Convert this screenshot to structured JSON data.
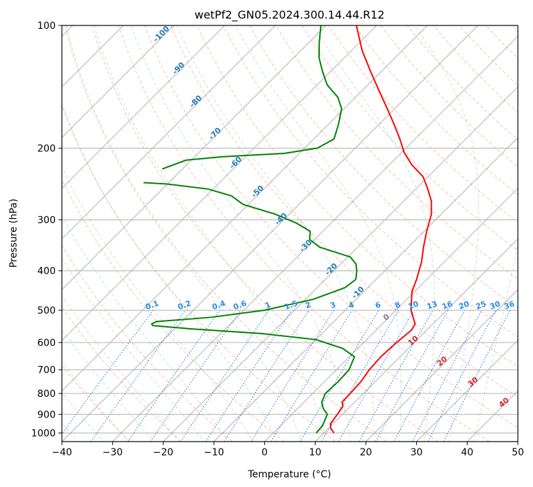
{
  "chart_data": {
    "type": "line",
    "chart_kind": "skew-T log-p diagram",
    "title": "wetPf2_GN05.2024.300.14.44.R12",
    "xlabel": "Temperature (°C)",
    "ylabel": "Pressure (hPa)",
    "xlim": [
      -40,
      50
    ],
    "ylim": [
      1050,
      100
    ],
    "y_scale": "log",
    "grid": true,
    "x_ticks": [
      -40,
      -30,
      -20,
      -10,
      0,
      10,
      20,
      30,
      40,
      50
    ],
    "y_ticks": [
      1000,
      900,
      800,
      700,
      600,
      500,
      400,
      300,
      200,
      100
    ],
    "isotherm_spacing": 10,
    "dry_adiabat_labels": [
      "-100",
      "-90",
      "-80",
      "-70",
      "-60",
      "-50",
      "-40",
      "-30",
      "-20",
      "-10"
    ],
    "mixing_ratio_labels": [
      "0.1",
      "0.2",
      "0.4",
      "0.6",
      "1",
      "1.5",
      "2",
      "3",
      "4",
      "6",
      "8",
      "10",
      "13",
      "16",
      "20",
      "25",
      "30",
      "36"
    ],
    "moist_adiabat_labels": [
      "0",
      "10",
      "20",
      "30",
      "40"
    ],
    "series": [
      {
        "role": "temperature",
        "color": "#ff0000",
        "points": [
          {
            "p": 1000,
            "t": 12.0
          },
          {
            "p": 975,
            "t": 10.5
          },
          {
            "p": 950,
            "t": 9.5
          },
          {
            "p": 900,
            "t": 9.0
          },
          {
            "p": 860,
            "t": 8.5
          },
          {
            "p": 840,
            "t": 7.5
          },
          {
            "p": 800,
            "t": 7.4
          },
          {
            "p": 750,
            "t": 7.2
          },
          {
            "p": 700,
            "t": 6.5
          },
          {
            "p": 650,
            "t": 6.2
          },
          {
            "p": 600,
            "t": 6.5
          },
          {
            "p": 560,
            "t": 7.0
          },
          {
            "p": 540,
            "t": 6.5
          },
          {
            "p": 500,
            "t": 3.0
          },
          {
            "p": 450,
            "t": -0.5
          },
          {
            "p": 420,
            "t": -2.0
          },
          {
            "p": 380,
            "t": -4.5
          },
          {
            "p": 350,
            "t": -7.0
          },
          {
            "p": 320,
            "t": -9.5
          },
          {
            "p": 290,
            "t": -12.0
          },
          {
            "p": 270,
            "t": -14.5
          },
          {
            "p": 250,
            "t": -18.0
          },
          {
            "p": 235,
            "t": -21.0
          },
          {
            "p": 220,
            "t": -25.5
          },
          {
            "p": 205,
            "t": -29.5
          },
          {
            "p": 190,
            "t": -33.0
          },
          {
            "p": 175,
            "t": -37.0
          },
          {
            "p": 160,
            "t": -41.5
          },
          {
            "p": 145,
            "t": -46.5
          },
          {
            "p": 130,
            "t": -52.0
          },
          {
            "p": 115,
            "t": -58.0
          },
          {
            "p": 100,
            "t": -64.0
          }
        ]
      },
      {
        "role": "dewpoint",
        "color": "#008000",
        "points": [
          {
            "p": 1000,
            "t": 8.5
          },
          {
            "p": 960,
            "t": 8.3
          },
          {
            "p": 900,
            "t": 7.0
          },
          {
            "p": 870,
            "t": 5.0
          },
          {
            "p": 840,
            "t": 3.5
          },
          {
            "p": 800,
            "t": 2.5
          },
          {
            "p": 750,
            "t": 2.7
          },
          {
            "p": 700,
            "t": 2.5
          },
          {
            "p": 650,
            "t": 1.0
          },
          {
            "p": 620,
            "t": -3.0
          },
          {
            "p": 590,
            "t": -10.0
          },
          {
            "p": 570,
            "t": -22.0
          },
          {
            "p": 555,
            "t": -37.0
          },
          {
            "p": 545,
            "t": -45.0
          },
          {
            "p": 540,
            "t": -45.5
          },
          {
            "p": 533,
            "t": -45.0
          },
          {
            "p": 520,
            "t": -35.0
          },
          {
            "p": 500,
            "t": -26.0
          },
          {
            "p": 470,
            "t": -18.5
          },
          {
            "p": 440,
            "t": -14.5
          },
          {
            "p": 420,
            "t": -14.0
          },
          {
            "p": 400,
            "t": -15.5
          },
          {
            "p": 385,
            "t": -17.0
          },
          {
            "p": 370,
            "t": -19.5
          },
          {
            "p": 350,
            "t": -27.5
          },
          {
            "p": 335,
            "t": -31.0
          },
          {
            "p": 320,
            "t": -32.5
          },
          {
            "p": 305,
            "t": -37.0
          },
          {
            "p": 290,
            "t": -43.0
          },
          {
            "p": 275,
            "t": -51.0
          },
          {
            "p": 262,
            "t": -55.0
          },
          {
            "p": 252,
            "t": -61.0
          },
          {
            "p": 245,
            "t": -70.0
          },
          {
            "p": 243,
            "t": -75.0
          }
        ]
      },
      {
        "role": "dewpoint",
        "color": "#008000",
        "points": [
          {
            "p": 225,
            "t": -74.0
          },
          {
            "p": 214,
            "t": -71.0
          },
          {
            "p": 210,
            "t": -64.5
          },
          {
            "p": 206,
            "t": -53.0
          },
          {
            "p": 200,
            "t": -47.5
          },
          {
            "p": 190,
            "t": -46.0
          },
          {
            "p": 175,
            "t": -48.0
          },
          {
            "p": 160,
            "t": -50.5
          },
          {
            "p": 150,
            "t": -53.5
          },
          {
            "p": 140,
            "t": -58.0
          },
          {
            "p": 130,
            "t": -61.5
          },
          {
            "p": 120,
            "t": -65.0
          },
          {
            "p": 110,
            "t": -68.0
          },
          {
            "p": 100,
            "t": -71.0
          }
        ]
      }
    ]
  }
}
